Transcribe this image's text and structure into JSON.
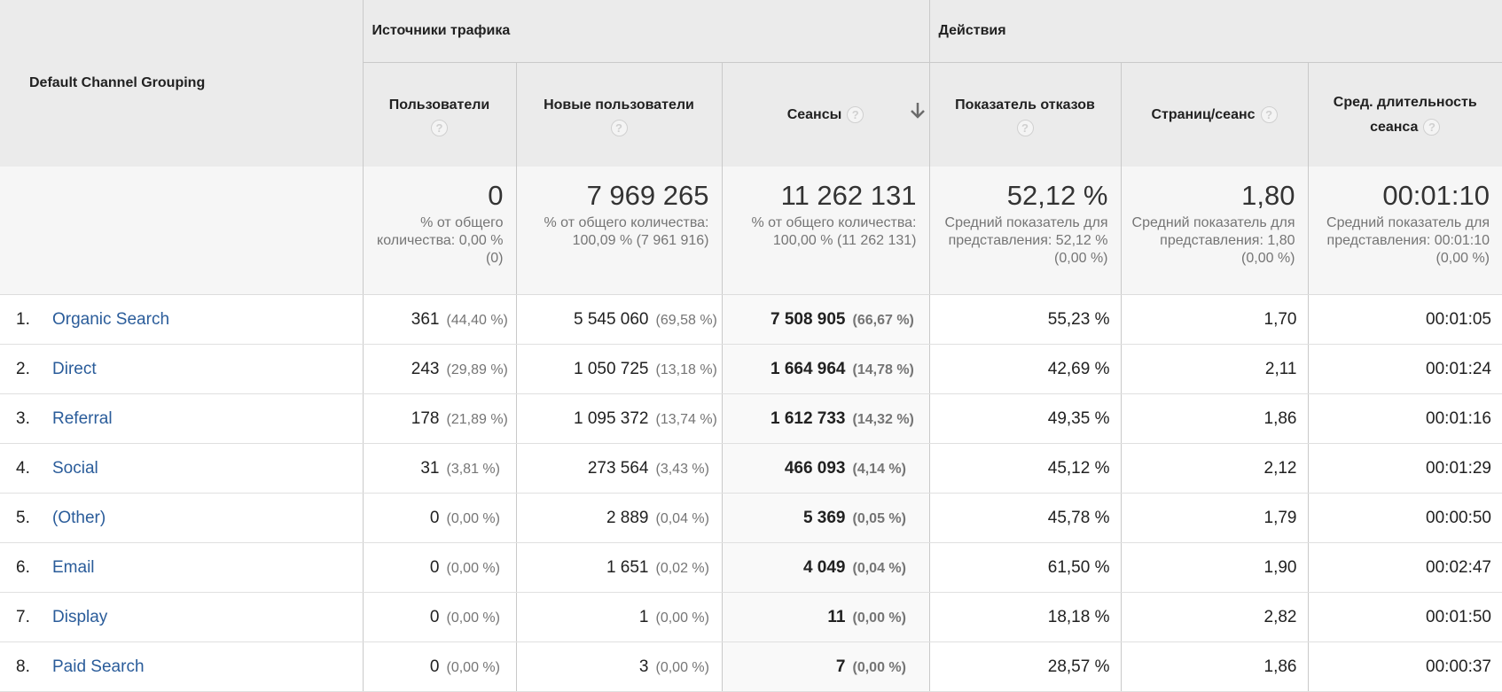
{
  "groups": {
    "dimension": "Default Channel Grouping",
    "acquisition": "Источники трафика",
    "behavior": "Действия"
  },
  "columns": {
    "users": "Пользователи",
    "new_users": "Новые пользователи",
    "sessions": "Сеансы",
    "bounce_rate": "Показатель отказов",
    "pages_per_session": "Страниц/сеанс",
    "avg_duration": "Сред. длительность сеанса",
    "help_glyph": "?"
  },
  "totals": {
    "users": {
      "value": "0",
      "sub": "% от общего количества: 0,00 % (0)"
    },
    "new_users": {
      "value": "7 969 265",
      "sub": "% от общего количества: 100,09 % (7 961 916)"
    },
    "sessions": {
      "value": "11 262 131",
      "sub": "% от общего количества: 100,00 % (11 262 131)"
    },
    "bounce_rate": {
      "value": "52,12 %",
      "sub": "Средний показатель для представления: 52,12 % (0,00 %)"
    },
    "pages_per_session": {
      "value": "1,80",
      "sub": "Средний показатель для представления: 1,80 (0,00 %)"
    },
    "avg_duration": {
      "value": "00:01:10",
      "sub": "Средний показатель для представления: 00:01:10 (0,00 %)"
    }
  },
  "rows": [
    {
      "rank": "1.",
      "channel": "Organic Search",
      "users": "361",
      "users_pct": "(44,40 %)",
      "new_users": "5 545 060",
      "new_users_pct": "(69,58 %)",
      "sessions": "7 508 905",
      "sessions_pct": "(66,67 %)",
      "bounce": "55,23 %",
      "pages": "1,70",
      "duration": "00:01:05"
    },
    {
      "rank": "2.",
      "channel": "Direct",
      "users": "243",
      "users_pct": "(29,89 %)",
      "new_users": "1 050 725",
      "new_users_pct": "(13,18 %)",
      "sessions": "1 664 964",
      "sessions_pct": "(14,78 %)",
      "bounce": "42,69 %",
      "pages": "2,11",
      "duration": "00:01:24"
    },
    {
      "rank": "3.",
      "channel": "Referral",
      "users": "178",
      "users_pct": "(21,89 %)",
      "new_users": "1 095 372",
      "new_users_pct": "(13,74 %)",
      "sessions": "1 612 733",
      "sessions_pct": "(14,32 %)",
      "bounce": "49,35 %",
      "pages": "1,86",
      "duration": "00:01:16"
    },
    {
      "rank": "4.",
      "channel": "Social",
      "users": "31",
      "users_pct": "(3,81 %)",
      "new_users": "273 564",
      "new_users_pct": "(3,43 %)",
      "sessions": "466 093",
      "sessions_pct": "(4,14 %)",
      "bounce": "45,12 %",
      "pages": "2,12",
      "duration": "00:01:29"
    },
    {
      "rank": "5.",
      "channel": "(Other)",
      "users": "0",
      "users_pct": "(0,00 %)",
      "new_users": "2 889",
      "new_users_pct": "(0,04 %)",
      "sessions": "5 369",
      "sessions_pct": "(0,05 %)",
      "bounce": "45,78 %",
      "pages": "1,79",
      "duration": "00:00:50"
    },
    {
      "rank": "6.",
      "channel": "Email",
      "users": "0",
      "users_pct": "(0,00 %)",
      "new_users": "1 651",
      "new_users_pct": "(0,02 %)",
      "sessions": "4 049",
      "sessions_pct": "(0,04 %)",
      "bounce": "61,50 %",
      "pages": "1,90",
      "duration": "00:02:47"
    },
    {
      "rank": "7.",
      "channel": "Display",
      "users": "0",
      "users_pct": "(0,00 %)",
      "new_users": "1",
      "new_users_pct": "(0,00 %)",
      "sessions": "11",
      "sessions_pct": "(0,00 %)",
      "bounce": "18,18 %",
      "pages": "2,82",
      "duration": "00:01:50"
    },
    {
      "rank": "8.",
      "channel": "Paid Search",
      "users": "0",
      "users_pct": "(0,00 %)",
      "new_users": "3",
      "new_users_pct": "(0,00 %)",
      "sessions": "7",
      "sessions_pct": "(0,00 %)",
      "bounce": "28,57 %",
      "pages": "1,86",
      "duration": "00:00:37"
    }
  ],
  "icons": {
    "help": "help-circle-icon",
    "sort": "arrow-down-icon"
  },
  "colors": {
    "header_bg": "#ebebeb",
    "link": "#2a5c9a",
    "muted": "#757575"
  }
}
